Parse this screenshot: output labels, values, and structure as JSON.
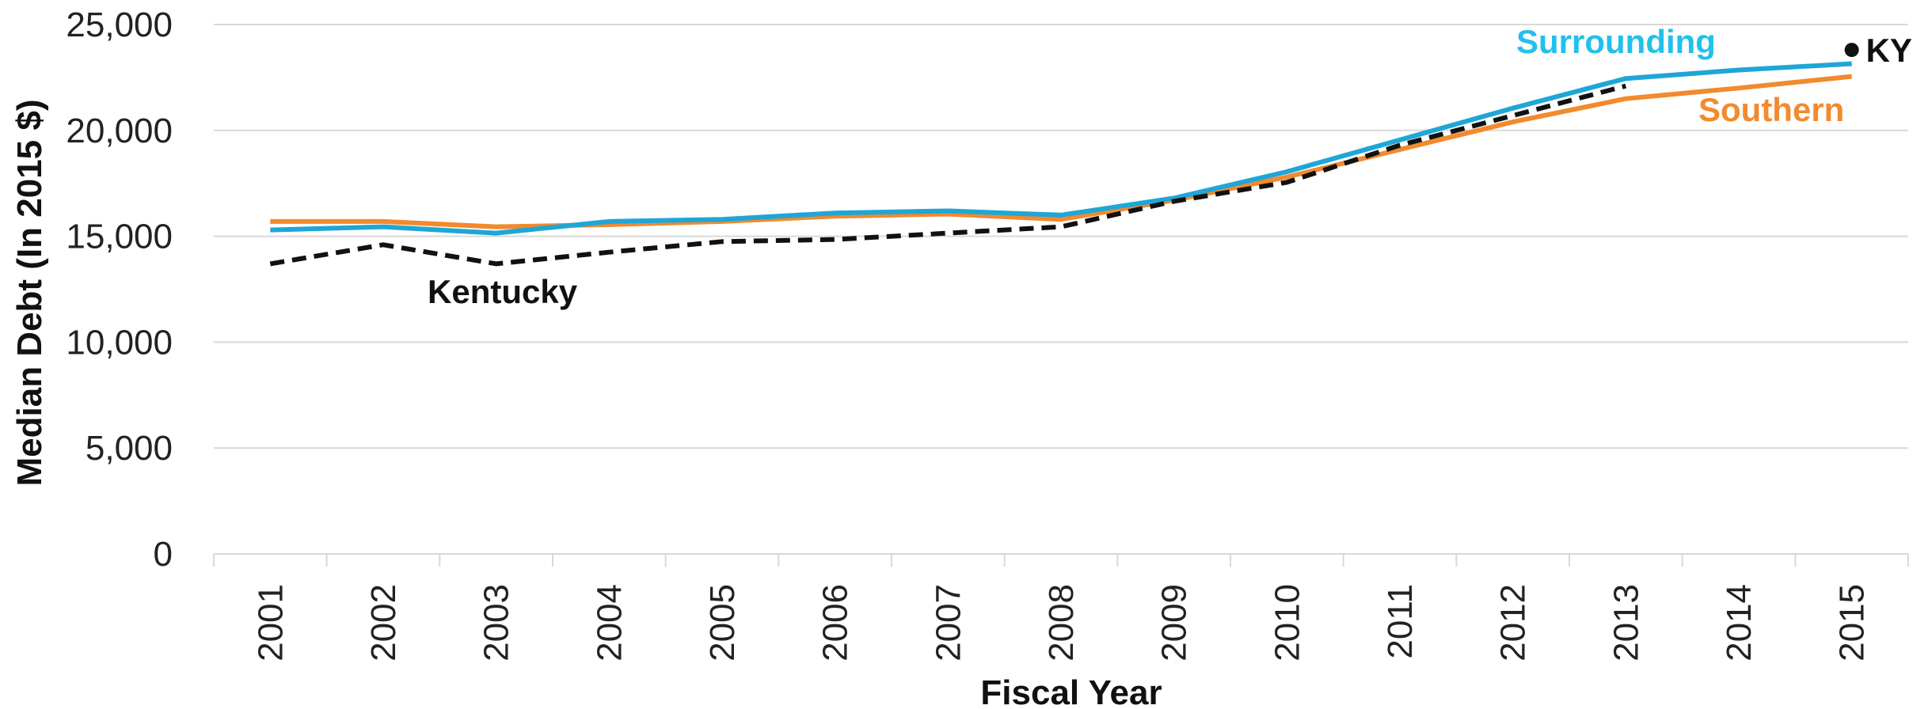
{
  "chart_data": {
    "type": "line",
    "xlabel": "Fiscal Year",
    "ylabel": "Median Debt (In 2015 $)",
    "ylim": [
      0,
      25000
    ],
    "yticks": [
      0,
      5000,
      10000,
      15000,
      20000,
      25000
    ],
    "ytick_labels": [
      "0",
      "5,000",
      "10,000",
      "15,000",
      "20,000",
      "25,000"
    ],
    "grid": true,
    "x": [
      "2001",
      "2002",
      "2003",
      "2004",
      "2005",
      "2006",
      "2007",
      "2008",
      "2009",
      "2010",
      "2011",
      "2012",
      "2013",
      "2014",
      "2015"
    ],
    "series": [
      {
        "name": "Southern",
        "color": "#F28A2E",
        "style": "solid",
        "values": [
          15700,
          15700,
          15450,
          15550,
          15700,
          15950,
          16050,
          15800,
          16700,
          17800,
          19100,
          20400,
          21500,
          22000,
          22550
        ]
      },
      {
        "name": "Surrounding",
        "color": "#1FA6D6",
        "style": "solid",
        "label_color": "#22C0EC",
        "values": [
          15300,
          15450,
          15150,
          15700,
          15800,
          16100,
          16200,
          16000,
          16800,
          18050,
          19550,
          21050,
          22450,
          22850,
          23150
        ]
      },
      {
        "name": "Kentucky",
        "color": "#111111",
        "style": "dashed",
        "values": [
          13700,
          14600,
          13700,
          14250,
          14750,
          14850,
          15150,
          15450,
          16650,
          17550,
          19300,
          20700,
          22100,
          null,
          null
        ]
      }
    ],
    "point_marker": {
      "label": "KY",
      "x": "2015",
      "value": 23800,
      "color": "#111111"
    }
  }
}
